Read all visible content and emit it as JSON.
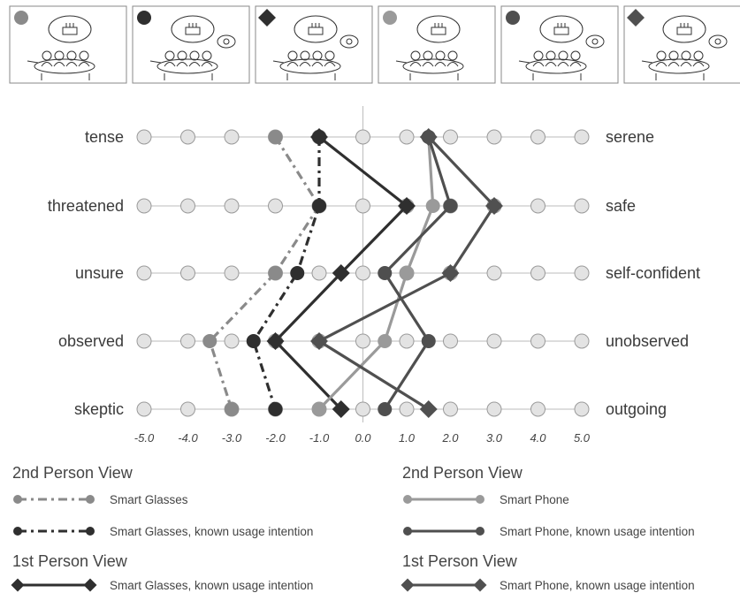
{
  "chart_data": {
    "type": "line",
    "orientation": "horizontal-scale",
    "xlim": [
      -5.0,
      5.0
    ],
    "x_ticks": [
      "-5.0",
      "-4.0",
      "-3.0",
      "-2.0",
      "-1.0",
      "0.0",
      "1.0",
      "2.0",
      "3.0",
      "4.0",
      "5.0"
    ],
    "scale_points": [
      -5,
      -4,
      -3,
      -2,
      -1,
      0,
      1,
      2,
      3,
      4,
      5
    ],
    "items": [
      {
        "left": "tense",
        "right": "serene"
      },
      {
        "left": "threatened",
        "right": "safe"
      },
      {
        "left": "unsure",
        "right": "self-confident"
      },
      {
        "left": "observed",
        "right": "unobserved"
      },
      {
        "left": "skeptic",
        "right": "outgoing"
      }
    ],
    "series": [
      {
        "name": "Smart Glasses",
        "group": "2nd Person View",
        "color": "#8a8a8a",
        "dash": "dashdot",
        "marker": "circle",
        "values": [
          -2.0,
          -1.0,
          -2.0,
          -3.5,
          -3.0
        ]
      },
      {
        "name": "Smart Glasses, known usage intention",
        "group": "2nd Person View",
        "color": "#2f2f2f",
        "dash": "dashdot",
        "marker": "circle",
        "values": [
          -1.0,
          -1.0,
          -1.5,
          -2.5,
          -2.0
        ]
      },
      {
        "name": "Smart Glasses, known usage intention",
        "group": "1st Person View",
        "color": "#2f2f2f",
        "dash": "solid",
        "marker": "diamond",
        "values": [
          -1.0,
          1.0,
          -0.5,
          -2.0,
          -0.5
        ]
      },
      {
        "name": "Smart Phone",
        "group": "2nd Person View",
        "color": "#9a9a9a",
        "dash": "solid",
        "marker": "circle",
        "values": [
          1.5,
          1.6,
          1.0,
          0.5,
          -1.0
        ]
      },
      {
        "name": "Smart Phone, known usage intention",
        "group": "2nd Person View",
        "color": "#4f4f4f",
        "dash": "solid",
        "marker": "circle",
        "values": [
          1.5,
          2.0,
          0.5,
          1.5,
          0.5
        ]
      },
      {
        "name": "Smart Phone, known usage intention",
        "group": "1st Person View",
        "color": "#505050",
        "dash": "solid",
        "marker": "diamond",
        "values": [
          1.5,
          3.0,
          2.0,
          -1.0,
          1.5
        ]
      }
    ],
    "grid": true
  },
  "panels": [
    {
      "marker": "circle",
      "color": "#8a8a8a"
    },
    {
      "marker": "circle",
      "color": "#2f2f2f"
    },
    {
      "marker": "diamond",
      "color": "#2f2f2f"
    },
    {
      "marker": "circle",
      "color": "#9a9a9a"
    },
    {
      "marker": "circle",
      "color": "#4f4f4f"
    },
    {
      "marker": "diamond",
      "color": "#505050"
    }
  ],
  "legend": {
    "left_group_1": "2nd Person View",
    "left_group_2": "1st Person View",
    "right_group_1": "2nd Person View",
    "right_group_2": "1st Person View",
    "entries": [
      {
        "label": "Smart Glasses",
        "series": 0
      },
      {
        "label": "Smart Glasses, known usage intention",
        "series": 1
      },
      {
        "label": "Smart Glasses, known usage intention",
        "series": 2
      },
      {
        "label": "Smart Phone",
        "series": 3
      },
      {
        "label": "Smart Phone, known usage intention",
        "series": 4
      },
      {
        "label": "Smart Phone, known usage intention",
        "series": 5
      }
    ]
  },
  "colors": {
    "grid_dot_fill": "#e3e3e3",
    "grid_dot_stroke": "#9a9a9a",
    "axis": "#bdbdbd"
  }
}
